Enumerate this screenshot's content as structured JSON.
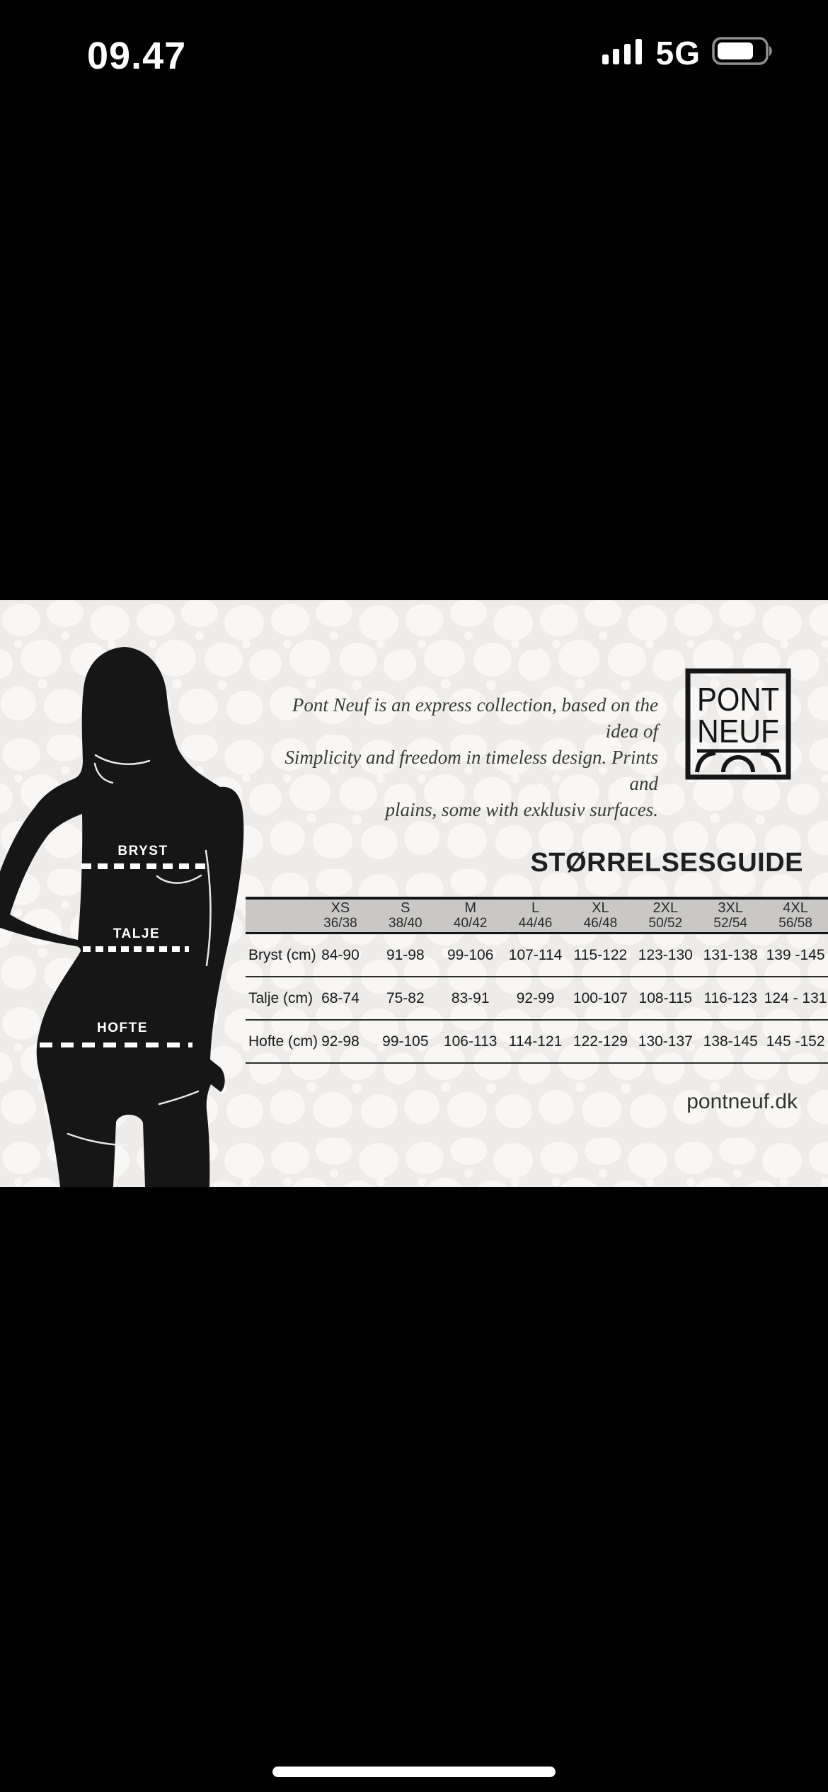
{
  "status_bar": {
    "time": "09.47",
    "network": "5G",
    "signal_icon": "cellular-signal-4-bars",
    "battery_icon": "battery-about-75-percent"
  },
  "photo": {
    "intro_lines": [
      "Pont Neuf is an express collection, based on the idea of",
      "Simplicity and freedom in timeless design. Prints and",
      "plains, some with exklusiv surfaces."
    ],
    "logo": {
      "line1": "PONT",
      "line2": "NEUF",
      "arches_icon": "bridge-arches"
    },
    "guide_title": "STØRRELSESGUIDE",
    "site_link": "pontneuf.dk",
    "figure": {
      "silhouette_icon": "woman-silhouette",
      "bust_label": "BRYST",
      "waist_label": "TALJE",
      "hip_label": "HOFTE"
    }
  },
  "size_table": {
    "columns": [
      {
        "size": "XS",
        "eu": "36/38"
      },
      {
        "size": "S",
        "eu": "38/40"
      },
      {
        "size": "M",
        "eu": "40/42"
      },
      {
        "size": "L",
        "eu": "44/46"
      },
      {
        "size": "XL",
        "eu": "46/48"
      },
      {
        "size": "2XL",
        "eu": "50/52"
      },
      {
        "size": "3XL",
        "eu": "52/54"
      },
      {
        "size": "4XL",
        "eu": "56/58"
      }
    ],
    "rows": [
      {
        "label": "Bryst (cm)",
        "values": [
          "84-90",
          "91-98",
          "99-106",
          "107-114",
          "115-122",
          "123-130",
          "131-138",
          "139 -145"
        ]
      },
      {
        "label": "Talje (cm)",
        "values": [
          "68-74",
          "75-82",
          "83-91",
          "92-99",
          "100-107",
          "108-115",
          "116-123",
          "124 - 131"
        ]
      },
      {
        "label": "Hofte (cm)",
        "values": [
          "92-98",
          "99-105",
          "106-113",
          "114-121",
          "122-129",
          "130-137",
          "138-145",
          "145 -152"
        ]
      }
    ]
  },
  "colors": {
    "band_black": "#000000",
    "photo_background": "#f5f4f2",
    "silhouette": "#161616",
    "table_header_gray": "#c9c8c6",
    "text_dark": "#1a1a1a"
  }
}
